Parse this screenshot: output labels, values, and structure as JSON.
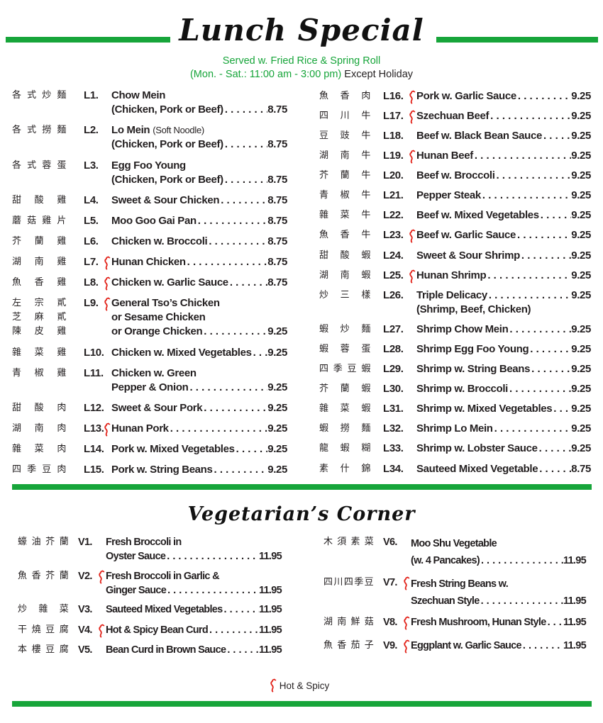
{
  "header": {
    "title": "Lunch Special",
    "subtitle_line1": "Served w. Fried Rice & Spring Roll",
    "subtitle_hours": "(Mon. - Sat.: 11:00 am - 3:00 pm)",
    "subtitle_except": "Except Holiday"
  },
  "colors": {
    "accent_green": "#17a53a",
    "hot_red": "#e2231a",
    "text": "#231f20"
  },
  "lunch_items": [
    {
      "cn": "各式炒麵",
      "code": "L1.",
      "lines": [
        "Chow Mein",
        "(Chicken, Pork or Beef)"
      ],
      "price": "8.75",
      "hot": false
    },
    {
      "cn": "各式撈麵",
      "code": "L2.",
      "lines": [
        "Lo Mein",
        "(Chicken, Pork or Beef)"
      ],
      "note": "(Soft Noodle)",
      "price": "8.75",
      "hot": false
    },
    {
      "cn": "各式蓉蛋",
      "code": "L3.",
      "lines": [
        "Egg Foo Young",
        "(Chicken, Pork or Beef)"
      ],
      "price": "8.75",
      "hot": false
    },
    {
      "cn": "甜酸雞",
      "code": "L4.",
      "lines": [
        "Sweet & Sour Chicken"
      ],
      "price": "8.75",
      "hot": false
    },
    {
      "cn": "蘑菇雞片",
      "code": "L5.",
      "lines": [
        "Moo Goo Gai Pan"
      ],
      "price": "8.75",
      "hot": false
    },
    {
      "cn": "芥蘭雞",
      "code": "L6.",
      "lines": [
        "Chicken w. Broccoli"
      ],
      "price": "8.75",
      "hot": false
    },
    {
      "cn": "湖南雞",
      "code": "L7.",
      "lines": [
        "Hunan Chicken"
      ],
      "price": "8.75",
      "hot": true
    },
    {
      "cn": "魚香雞",
      "code": "L8.",
      "lines": [
        "Chicken w. Garlic Sauce"
      ],
      "price": "8.75",
      "hot": true
    },
    {
      "cn": "左宗貳\n芝麻貳\n陳皮雞",
      "code": "L9.",
      "lines": [
        "General Tso’s Chicken",
        "or Sesame Chicken",
        "or Orange Chicken"
      ],
      "price": "9.25",
      "hot": true
    },
    {
      "cn": "雜菜雞",
      "code": "L10.",
      "lines": [
        "Chicken w. Mixed Vegetables"
      ],
      "price": "9.25",
      "hot": false
    },
    {
      "cn": "青椒雞",
      "code": "L11.",
      "lines": [
        "Chicken w. Green",
        "Pepper & Onion"
      ],
      "price": "9.25",
      "hot": false
    },
    {
      "cn": "甜酸肉",
      "code": "L12.",
      "lines": [
        "Sweet & Sour Pork"
      ],
      "price": "9.25",
      "hot": false
    },
    {
      "cn": "湖南肉",
      "code": "L13.",
      "lines": [
        "Hunan Pork"
      ],
      "price": "9.25",
      "hot": true
    },
    {
      "cn": "雜菜肉",
      "code": "L14.",
      "lines": [
        "Pork w. Mixed Vegetables"
      ],
      "price": "9.25",
      "hot": false
    },
    {
      "cn": "四季豆肉",
      "code": "L15.",
      "lines": [
        "Pork w. String Beans"
      ],
      "price": "9.25",
      "hot": false
    },
    {
      "cn": "魚香肉",
      "code": "L16.",
      "lines": [
        "Pork w. Garlic Sauce"
      ],
      "price": "9.25",
      "hot": true
    },
    {
      "cn": "四川牛",
      "code": "L17.",
      "lines": [
        "Szechuan Beef"
      ],
      "price": "9.25",
      "hot": true
    },
    {
      "cn": "豆豉牛",
      "code": "L18.",
      "lines": [
        "Beef w. Black Bean Sauce"
      ],
      "price": "9.25",
      "hot": false
    },
    {
      "cn": "湖南牛",
      "code": "L19.",
      "lines": [
        "Hunan Beef"
      ],
      "price": "9.25",
      "hot": true
    },
    {
      "cn": "芥蘭牛",
      "code": "L20.",
      "lines": [
        "Beef w. Broccoli"
      ],
      "price": "9.25",
      "hot": false
    },
    {
      "cn": "青椒牛",
      "code": "L21.",
      "lines": [
        "Pepper Steak"
      ],
      "price": "9.25",
      "hot": false
    },
    {
      "cn": "雜菜牛",
      "code": "L22.",
      "lines": [
        "Beef w. Mixed Vegetables"
      ],
      "price": "9.25",
      "hot": false
    },
    {
      "cn": "魚香牛",
      "code": "L23.",
      "lines": [
        "Beef w. Garlic Sauce"
      ],
      "price": "9.25",
      "hot": true
    },
    {
      "cn": "甜酸蝦",
      "code": "L24.",
      "lines": [
        "Sweet & Sour Shrimp"
      ],
      "price": "9.25",
      "hot": false
    },
    {
      "cn": "湖南蝦",
      "code": "L25.",
      "lines": [
        "Hunan Shrimp"
      ],
      "price": "9.25",
      "hot": true
    },
    {
      "cn": "炒三樣",
      "code": "L26.",
      "lines": [
        "Triple Delicacy",
        "(Shrimp, Beef, Chicken)"
      ],
      "price": "9.25",
      "price_on_line": 0,
      "hot": false
    },
    {
      "cn": "蝦炒麵",
      "code": "L27.",
      "lines": [
        "Shrimp Chow Mein"
      ],
      "price": "9.25",
      "hot": false
    },
    {
      "cn": "蝦蓉蛋",
      "code": "L28.",
      "lines": [
        "Shrimp Egg Foo Young"
      ],
      "price": "9.25",
      "hot": false
    },
    {
      "cn": "四季豆蝦",
      "code": "L29.",
      "lines": [
        "Shrimp w. String Beans"
      ],
      "price": "9.25",
      "hot": false
    },
    {
      "cn": "芥蘭蝦",
      "code": "L30.",
      "lines": [
        "Shrimp w. Broccoli"
      ],
      "price": "9.25",
      "hot": false
    },
    {
      "cn": "雜菜蝦",
      "code": "L31.",
      "lines": [
        "Shrimp w. Mixed Vegetables"
      ],
      "price": "9.25",
      "hot": false
    },
    {
      "cn": "蝦撈麵",
      "code": "L32.",
      "lines": [
        "Shrimp Lo Mein"
      ],
      "price": "9.25",
      "hot": false
    },
    {
      "cn": "龍蝦糊",
      "code": "L33.",
      "lines": [
        "Shrimp w. Lobster Sauce"
      ],
      "price": "9.25",
      "hot": false
    },
    {
      "cn": "素什錦",
      "code": "L34.",
      "lines": [
        "Sauteed Mixed Vegetable"
      ],
      "price": "8.75",
      "hot": false
    }
  ],
  "vegetarian": {
    "title": "Vegetarian’s Corner",
    "items": [
      {
        "cn": "蠔油芥蘭",
        "code": "V1.",
        "lines": [
          "Fresh Broccoli in",
          "Oyster Sauce"
        ],
        "price": "11.95",
        "hot": false
      },
      {
        "cn": "魚香芥蘭",
        "code": "V2.",
        "lines": [
          "Fresh Broccoli in Garlic &",
          "Ginger Sauce"
        ],
        "price": "11.95",
        "hot": true
      },
      {
        "cn": "炒雜菜",
        "code": "V3.",
        "lines": [
          "Sauteed Mixed Vegetables"
        ],
        "price": "11.95",
        "hot": false
      },
      {
        "cn": "干燒豆腐",
        "code": "V4.",
        "lines": [
          "Hot & Spicy Bean Curd"
        ],
        "price": "11.95",
        "hot": true
      },
      {
        "cn": "本樓豆腐",
        "code": "V5.",
        "lines": [
          "Bean Curd in Brown Sauce"
        ],
        "price": "11.95",
        "hot": false
      },
      {
        "cn": "木須素菜",
        "code": "V6.",
        "lines": [
          "Moo Shu Vegetable",
          "(w. 4 Pancakes)"
        ],
        "price": "11.95",
        "hot": false
      },
      {
        "cn": "四川四季豆",
        "code": "V7.",
        "lines": [
          "Fresh String Beans w.",
          "Szechuan Style"
        ],
        "price": "11.95",
        "hot": true
      },
      {
        "cn": "湖南鮮菇",
        "code": "V8.",
        "lines": [
          "Fresh Mushroom, Hunan Style"
        ],
        "price": "11.95",
        "hot": true
      },
      {
        "cn": "魚香茄子",
        "code": "V9.",
        "lines": [
          "Eggplant w. Garlic Sauce"
        ],
        "price": "11.95",
        "hot": true
      }
    ]
  },
  "legend": {
    "icon": "chili-pepper-icon",
    "label": "Hot & Spicy"
  }
}
